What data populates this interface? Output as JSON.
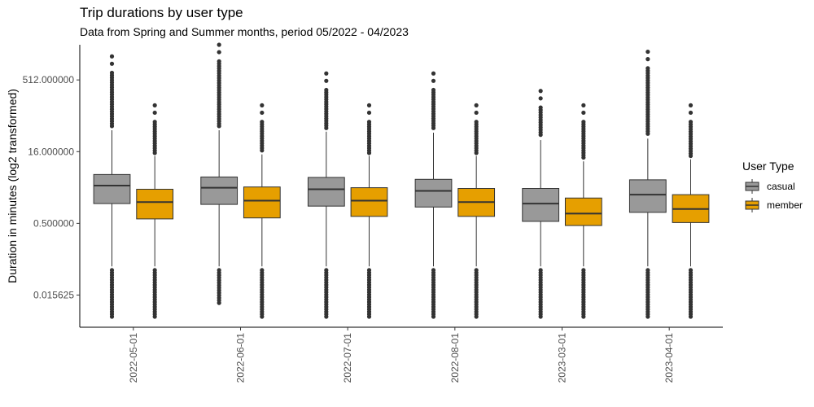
{
  "chart_data": {
    "type": "boxplot",
    "title": "Trip durations by user type",
    "subtitle": "Data from Spring and Summer months, period 05/2022 - 04/2023",
    "ylabel": "Duration in minutes (log2 transformed)",
    "xlabel": "",
    "y_scale": "log2",
    "ylim": [
      0.0033,
      2800
    ],
    "y_ticks": [
      0.015625,
      0.5,
      16,
      512
    ],
    "y_tick_labels": [
      "0.015625",
      "0.500000",
      "16.000000",
      "512.000000"
    ],
    "categories": [
      "2022-05-01",
      "2022-06-01",
      "2022-07-01",
      "2022-08-01",
      "2023-03-01",
      "2023-04-01"
    ],
    "legend": {
      "title": "User Type",
      "position": "right"
    },
    "grid": false,
    "series": [
      {
        "name": "casual",
        "color": "#999999",
        "boxes": [
          {
            "q1": 1.3,
            "median": 3.1,
            "q3": 5.3,
            "whisker_low": 0.0625,
            "whisker_high": 45,
            "out_low_top": 0.052,
            "out_high_bottom": 55,
            "min": 0.0055,
            "max": 1600
          },
          {
            "q1": 1.25,
            "median": 2.8,
            "q3": 4.7,
            "whisker_low": 0.0625,
            "whisker_high": 45,
            "out_low_top": 0.052,
            "out_high_bottom": 55,
            "min": 0.0107,
            "max": 2800
          },
          {
            "q1": 1.15,
            "median": 2.6,
            "q3": 4.6,
            "whisker_low": 0.0625,
            "whisker_high": 42,
            "out_low_top": 0.052,
            "out_high_bottom": 50,
            "min": 0.0055,
            "max": 700
          },
          {
            "q1": 1.1,
            "median": 2.4,
            "q3": 4.2,
            "whisker_low": 0.0625,
            "whisker_high": 40,
            "out_low_top": 0.052,
            "out_high_bottom": 50,
            "min": 0.0055,
            "max": 700
          },
          {
            "q1": 0.55,
            "median": 1.3,
            "q3": 2.7,
            "whisker_low": 0.0625,
            "whisker_high": 28,
            "out_low_top": 0.052,
            "out_high_bottom": 36,
            "min": 0.0055,
            "max": 300
          },
          {
            "q1": 0.85,
            "median": 2.0,
            "q3": 4.1,
            "whisker_low": 0.0625,
            "whisker_high": 30,
            "out_low_top": 0.052,
            "out_high_bottom": 38,
            "min": 0.0055,
            "max": 2000
          }
        ]
      },
      {
        "name": "member",
        "color": "#E69F00",
        "boxes": [
          {
            "q1": 0.62,
            "median": 1.4,
            "q3": 2.6,
            "whisker_low": 0.0625,
            "whisker_high": 13,
            "out_low_top": 0.052,
            "out_high_bottom": 15,
            "min": 0.0055,
            "max": 150
          },
          {
            "q1": 0.65,
            "median": 1.5,
            "q3": 2.9,
            "whisker_low": 0.0625,
            "whisker_high": 14,
            "out_low_top": 0.052,
            "out_high_bottom": 17,
            "min": 0.0055,
            "max": 150
          },
          {
            "q1": 0.7,
            "median": 1.5,
            "q3": 2.8,
            "whisker_low": 0.0625,
            "whisker_high": 13,
            "out_low_top": 0.052,
            "out_high_bottom": 15,
            "min": 0.0055,
            "max": 150
          },
          {
            "q1": 0.7,
            "median": 1.4,
            "q3": 2.7,
            "whisker_low": 0.0625,
            "whisker_high": 13,
            "out_low_top": 0.052,
            "out_high_bottom": 15,
            "min": 0.0055,
            "max": 150
          },
          {
            "q1": 0.45,
            "median": 0.8,
            "q3": 1.7,
            "whisker_low": 0.0625,
            "whisker_high": 10,
            "out_low_top": 0.052,
            "out_high_bottom": 12,
            "min": 0.0055,
            "max": 150
          },
          {
            "q1": 0.52,
            "median": 1.0,
            "q3": 2.0,
            "whisker_low": 0.0625,
            "whisker_high": 11,
            "out_low_top": 0.052,
            "out_high_bottom": 13,
            "min": 0.0055,
            "max": 150
          }
        ]
      }
    ]
  }
}
